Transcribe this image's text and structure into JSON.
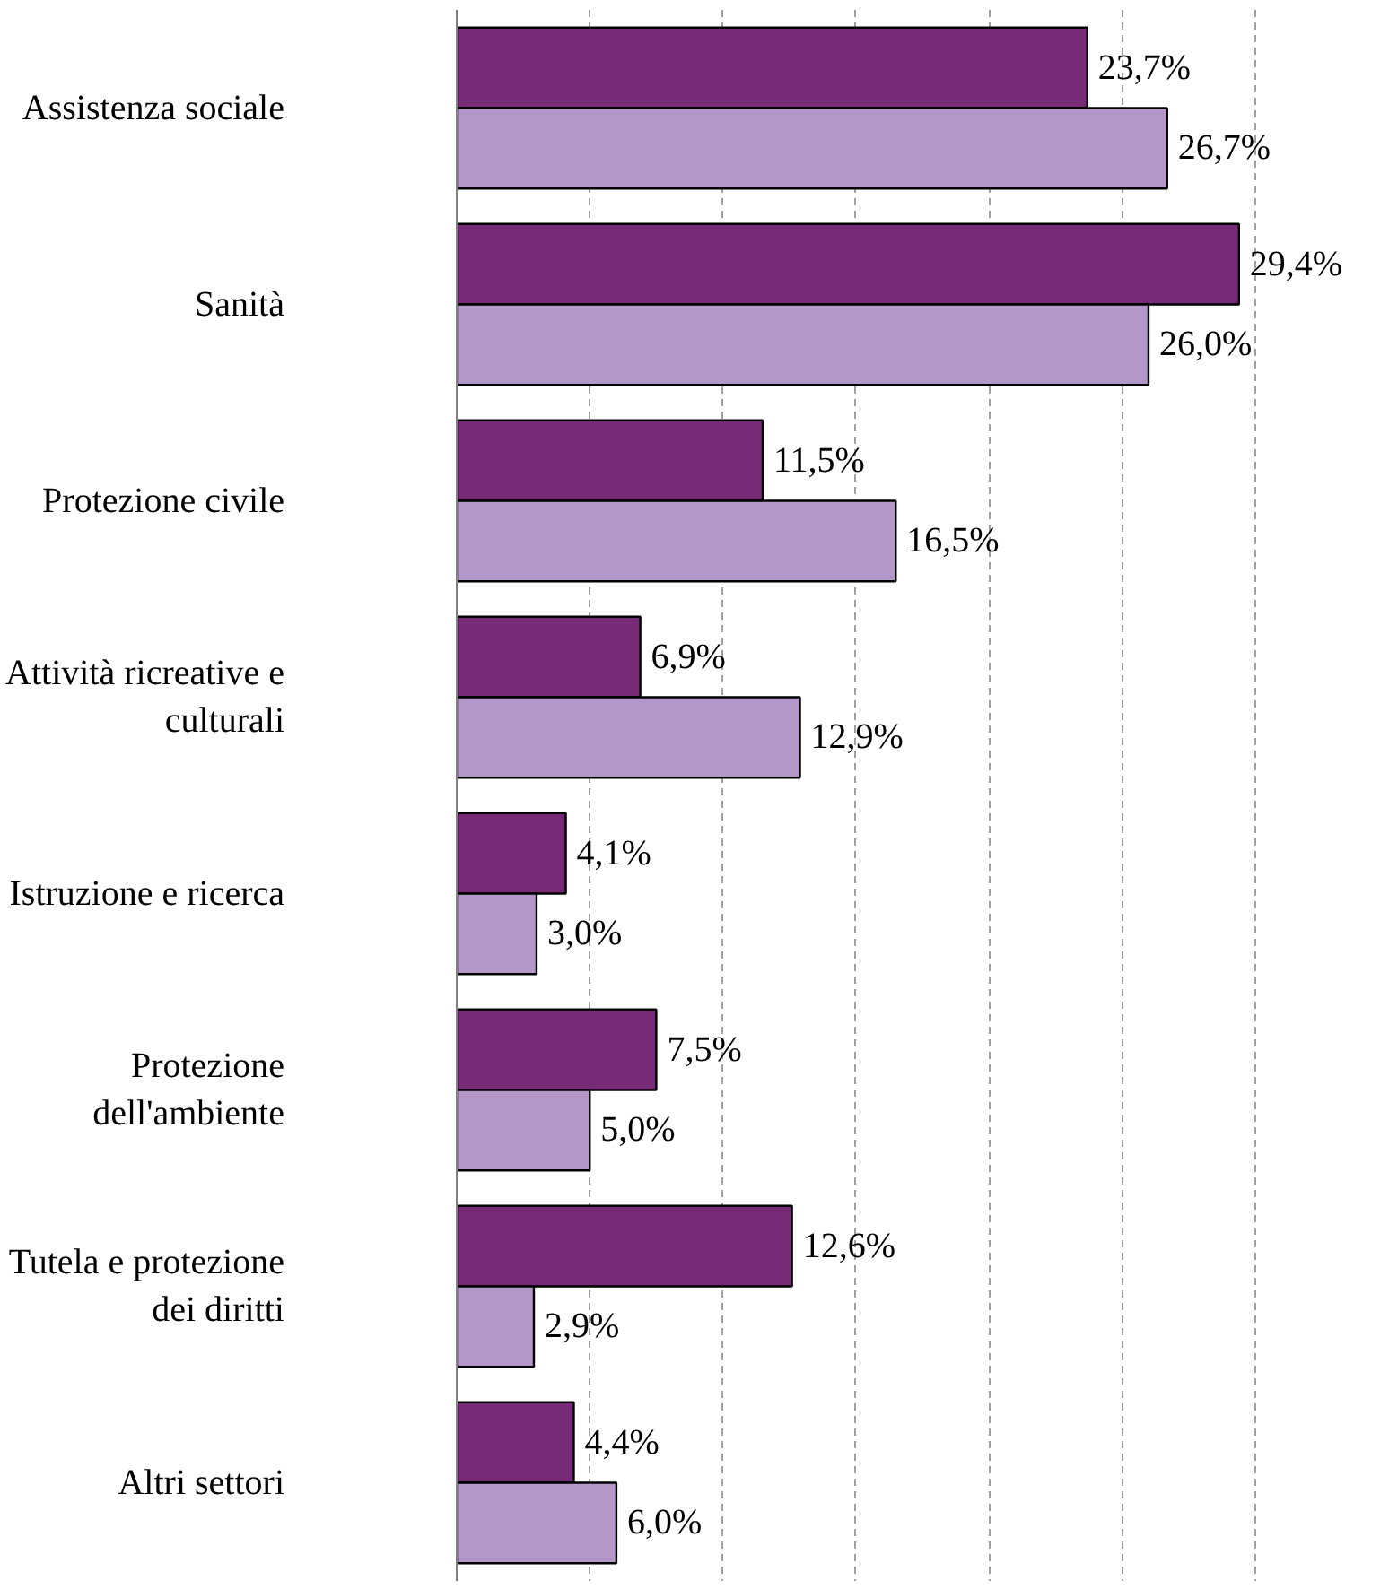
{
  "chart_data": {
    "type": "bar",
    "orientation": "horizontal",
    "categories": [
      "Assistenza sociale",
      "Sanità",
      "Protezione civile",
      "Attività ricreative e culturali",
      "Istruzione e ricerca",
      "Protezione dell'ambiente",
      "Tutela e protezione dei diritti",
      "Altri settori"
    ],
    "series": [
      {
        "color": "#772a76",
        "values": [
          23.7,
          29.4,
          11.5,
          6.9,
          4.1,
          7.5,
          12.6,
          4.4
        ],
        "value_labels": [
          "23,7%",
          "29,4%",
          "11,5%",
          "6,9%",
          "4,1%",
          "7,5%",
          "12,6%",
          "4,4%"
        ]
      },
      {
        "color": "#b497c9",
        "values": [
          26.7,
          26.0,
          16.5,
          12.9,
          3.0,
          5.0,
          2.9,
          6.0
        ],
        "value_labels": [
          "26,7%",
          "26,0%",
          "16,5%",
          "12,9%",
          "3,0%",
          "5,0%",
          "2,9%",
          "6,0%"
        ]
      }
    ],
    "grid": "x",
    "tick_labels": "y"
  }
}
